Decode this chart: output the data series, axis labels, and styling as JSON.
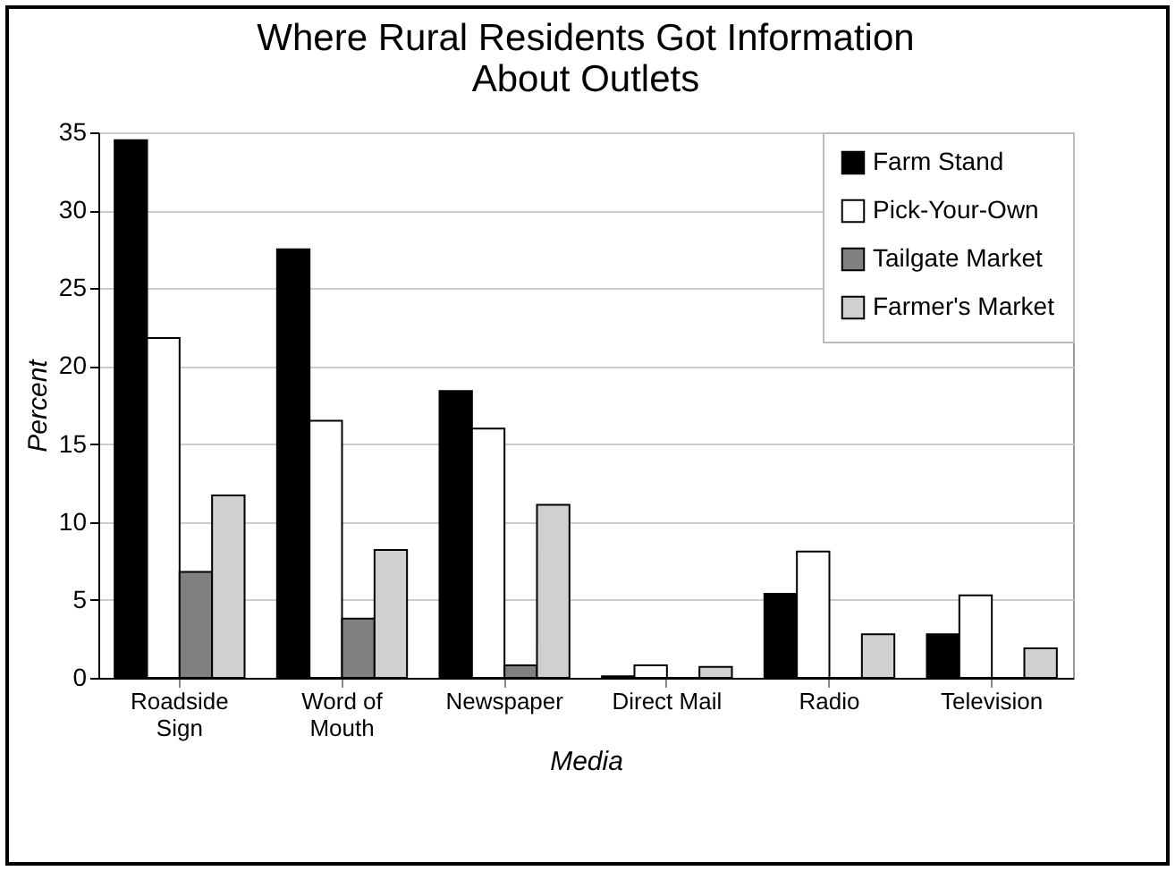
{
  "chart_data": {
    "type": "bar",
    "title": "Where Rural Residents Got Information\nAbout Outlets",
    "xlabel": "Media",
    "ylabel": "Percent",
    "categories": [
      "Roadside\nSign",
      "Word of\nMouth",
      "Newspaper",
      "Direct Mail",
      "Radio",
      "Television"
    ],
    "series": [
      {
        "name": "Farm Stand",
        "color": "#000000",
        "values": [
          34.5,
          27.5,
          18.4,
          0.1,
          5.4,
          2.8
        ]
      },
      {
        "name": "Pick-Your-Own",
        "color": "#ffffff",
        "values": [
          21.8,
          16.5,
          16,
          0.8,
          8.1,
          5.3
        ]
      },
      {
        "name": "Tailgate Market",
        "color": "#808080",
        "values": [
          6.8,
          3.8,
          0.8,
          0,
          0,
          0
        ]
      },
      {
        "name": "Farmer's Market",
        "color": "#d0d0d0",
        "values": [
          11.7,
          8.2,
          11.1,
          0.7,
          2.8,
          1.9
        ]
      }
    ],
    "ylim": [
      0,
      35
    ],
    "yticks": [
      0,
      5,
      10,
      15,
      20,
      25,
      30,
      35
    ],
    "grid": "y",
    "legend": "top right"
  }
}
